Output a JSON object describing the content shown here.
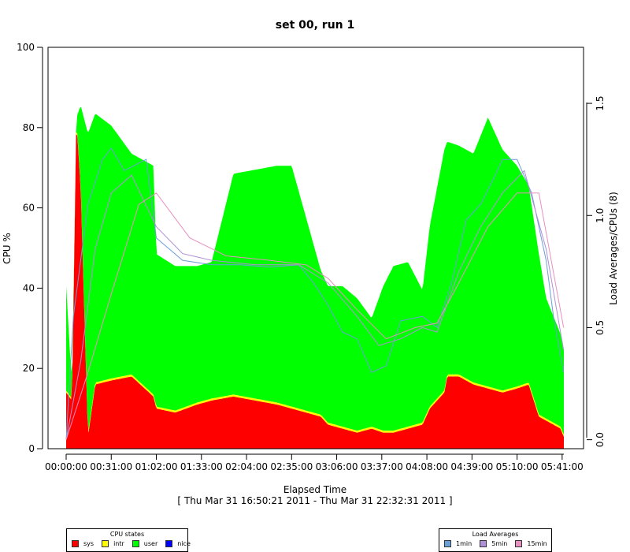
{
  "chart_data": {
    "type": "area",
    "title": "set 00, run 1",
    "xlabel": "Elapsed Time",
    "subtitle": "[ Thu Mar 31 16:50:21 2011 - Thu Mar 31 22:32:31 2011 ]",
    "ylabel": "CPU %",
    "y2label": "Load Averages/CPUs (8)",
    "ylim": [
      0,
      100
    ],
    "y2lim": [
      -0.04,
      1.75
    ],
    "xlim_sec": [
      0,
      20530
    ],
    "x_ticks": [
      "00:00:00",
      "00:31:00",
      "01:02:00",
      "01:33:00",
      "02:04:00",
      "02:35:00",
      "03:06:00",
      "03:37:00",
      "04:08:00",
      "04:39:00",
      "05:10:00",
      "05:41:00"
    ],
    "y_ticks": [
      "0",
      "20",
      "40",
      "60",
      "80",
      "100"
    ],
    "y2_ticks": [
      "0.0",
      "0.5",
      "1.0",
      "1.5"
    ],
    "grid": false,
    "stacked": true,
    "series": [
      {
        "name": "sys",
        "color": "#ff0000",
        "x_min": [
          0,
          4,
          7,
          10,
          15,
          20,
          31,
          45,
          60,
          62,
          75,
          90,
          100,
          115,
          130,
          145,
          155,
          165,
          175,
          180,
          190,
          200,
          210,
          218,
          225,
          235,
          245,
          250,
          260,
          262,
          270,
          280,
          290,
          300,
          310,
          318,
          325,
          330,
          340,
          342
        ],
        "values": [
          14,
          12,
          82,
          65,
          3,
          16,
          17,
          18,
          13,
          10,
          9,
          11,
          12,
          13,
          12,
          11,
          10,
          9,
          8,
          6,
          5,
          4,
          5,
          4,
          4,
          5,
          6,
          10,
          14,
          18,
          18,
          16,
          15,
          14,
          15,
          16,
          8,
          7,
          5,
          3
        ]
      },
      {
        "name": "intr",
        "color": "#ffff00",
        "x_min": [
          0,
          60,
          120,
          180,
          240,
          300,
          342
        ],
        "values": [
          0.5,
          0.5,
          0.5,
          0.5,
          0.5,
          0.5,
          0.5
        ]
      },
      {
        "name": "user",
        "color": "#00ff00",
        "x_min": [
          0,
          4,
          7,
          10,
          15,
          20,
          31,
          45,
          60,
          62,
          75,
          90,
          100,
          115,
          130,
          145,
          155,
          165,
          175,
          180,
          190,
          200,
          210,
          218,
          225,
          235,
          245,
          250,
          260,
          262,
          270,
          280,
          290,
          300,
          310,
          318,
          325,
          330,
          340,
          342
        ],
        "values": [
          26,
          3,
          0,
          20,
          75,
          67,
          63,
          55,
          57,
          38,
          36,
          34,
          34,
          55,
          57,
          59,
          60,
          48,
          36,
          34,
          35,
          33,
          27,
          36,
          41,
          41,
          33,
          45,
          60,
          58,
          57,
          57,
          67,
          60,
          55,
          49,
          40,
          30,
          23,
          21
        ]
      },
      {
        "name": "nice",
        "color": "#0000ff",
        "x_min": [
          0,
          342
        ],
        "values": [
          0,
          0
        ]
      }
    ],
    "load_series": [
      {
        "name": "1min",
        "color": "#6a9fd8",
        "x_min": [
          0,
          5,
          15,
          25,
          31,
          40,
          55,
          62,
          80,
          100,
          120,
          140,
          160,
          170,
          180,
          190,
          200,
          210,
          220,
          230,
          245,
          255,
          265,
          275,
          285,
          295,
          300,
          310,
          320,
          330,
          335,
          342
        ],
        "values": [
          0.0,
          0.55,
          1.05,
          1.25,
          1.3,
          1.2,
          1.25,
          0.9,
          0.8,
          0.78,
          0.78,
          0.77,
          0.78,
          0.7,
          0.6,
          0.48,
          0.45,
          0.3,
          0.33,
          0.53,
          0.55,
          0.5,
          0.7,
          0.98,
          1.05,
          1.18,
          1.25,
          1.25,
          1.1,
          0.8,
          0.55,
          0.3
        ]
      },
      {
        "name": "5min",
        "color": "#b090d8",
        "x_min": [
          0,
          10,
          20,
          31,
          45,
          62,
          80,
          100,
          130,
          160,
          180,
          200,
          215,
          230,
          245,
          255,
          270,
          285,
          300,
          315,
          330,
          342
        ],
        "values": [
          0.0,
          0.35,
          0.85,
          1.1,
          1.18,
          0.95,
          0.83,
          0.8,
          0.78,
          0.78,
          0.7,
          0.55,
          0.42,
          0.45,
          0.5,
          0.48,
          0.75,
          0.95,
          1.1,
          1.2,
          0.85,
          0.4
        ]
      },
      {
        "name": "15min",
        "color": "#e890c0",
        "x_min": [
          0,
          15,
          31,
          50,
          62,
          85,
          110,
          140,
          165,
          180,
          200,
          220,
          240,
          255,
          270,
          290,
          310,
          325,
          342
        ],
        "values": [
          0.0,
          0.3,
          0.65,
          1.05,
          1.1,
          0.9,
          0.82,
          0.8,
          0.78,
          0.72,
          0.58,
          0.45,
          0.5,
          0.52,
          0.7,
          0.95,
          1.1,
          1.1,
          0.5
        ]
      }
    ],
    "legends": [
      {
        "title": "CPU states",
        "position": "bottom-left",
        "entries": [
          "sys",
          "intr",
          "user",
          "nice"
        ]
      },
      {
        "title": "Load Averages",
        "position": "bottom-right",
        "entries": [
          "1min",
          "5min",
          "15min"
        ]
      }
    ]
  }
}
